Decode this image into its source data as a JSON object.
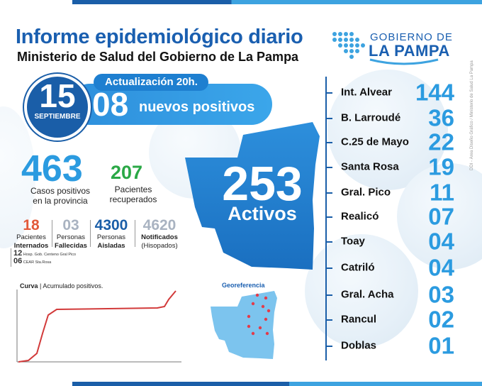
{
  "header": {
    "title": "Informe epidemiológico diario",
    "subtitle": "Ministerio de Salud del Gobierno de La Pampa"
  },
  "logo": {
    "line1": "GOBIERNO DE",
    "line2": "LA PAMPA",
    "icon": "dots-map-icon"
  },
  "side_credit": "DDI - Área Diseño Gráfico / Ministerio de Salud La Pampa",
  "update": {
    "label": "Actualización 20h.",
    "day": "15",
    "month": "SEPTIEMBRE",
    "new_count": "08",
    "new_label": "nuevos positivos"
  },
  "totals": {
    "positives": "463",
    "positives_label_1": "Casos positivos",
    "positives_label_2": "en la provincia",
    "recovered": "207",
    "recovered_label_1": "Pacientes",
    "recovered_label_2": "recuperados"
  },
  "stats": [
    {
      "value": "18",
      "label1": "Pacientes",
      "label2": "Internados",
      "color": "#e2593a"
    },
    {
      "value": "03",
      "label1": "Personas",
      "label2": "Fallecidas",
      "color": "#a9b3c1"
    },
    {
      "value": "4300",
      "label1": "Personas",
      "label2": "Aisladas",
      "color": "#1a5ea8"
    },
    {
      "value": "4620",
      "label1": "Notificados",
      "label2": "(Hisopados)",
      "color": "#a9b3c1"
    }
  ],
  "hospital_notes": [
    {
      "count": "12",
      "name": "Hosp. Gob. Centeno Gral Pico"
    },
    {
      "count": "06",
      "name": "CEAR Sta.Rosa"
    }
  ],
  "active": {
    "count": "253",
    "label": "Activos"
  },
  "curve": {
    "title_bold": "Curva",
    "title_rest": " | Acumulado positivos."
  },
  "geo": {
    "title": "Georeferencia"
  },
  "ranking": [
    {
      "name": "Int. Alvear",
      "value": "144"
    },
    {
      "name": "B. Larroudé",
      "value": "36"
    },
    {
      "name": "C.25 de Mayo",
      "value": "22"
    },
    {
      "name": "Santa Rosa",
      "value": "19"
    },
    {
      "name": "Gral. Pico",
      "value": "11"
    },
    {
      "name": "Realicó",
      "value": "07"
    },
    {
      "name": "Toay",
      "value": "04"
    },
    {
      "name": "Catriló",
      "value": "04"
    },
    {
      "name": "Gral. Acha",
      "value": "03"
    },
    {
      "name": "Rancul",
      "value": "02"
    },
    {
      "name": "Doblas",
      "value": "01"
    }
  ],
  "colors": {
    "brand_blue": "#1a5fb0",
    "light_blue": "#2b9be0",
    "green": "#2aa846",
    "red": "#e2593a",
    "curve_red": "#d23a3a"
  }
}
